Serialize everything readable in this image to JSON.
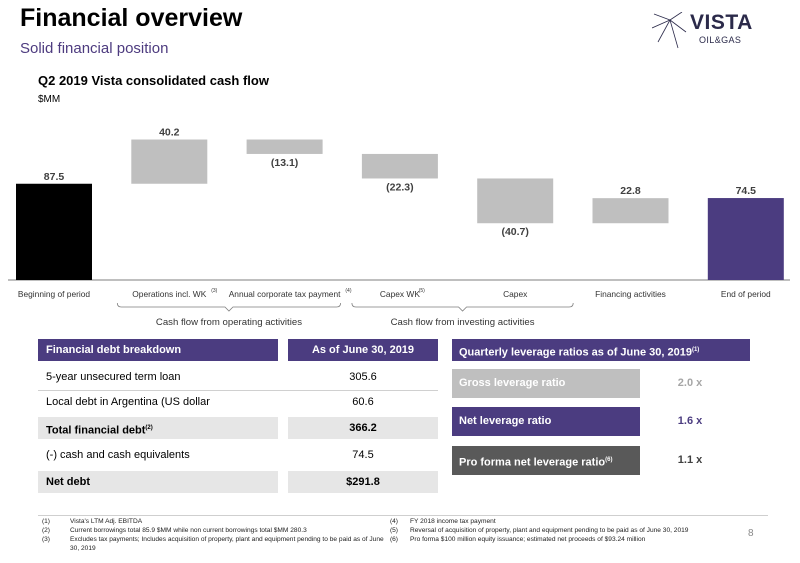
{
  "header": {
    "title": "Financial overview",
    "subtitle": "Solid financial position",
    "logo": {
      "name": "VISTA",
      "sub": "OIL&GAS"
    }
  },
  "chart_data": {
    "type": "bar",
    "title": "Q2 2019 Vista consolidated cash flow",
    "ylabel": "$MM",
    "categories": [
      "Beginning of period",
      "Operations incl. WK",
      "Annual corporate tax payment",
      "Capex WK",
      "Capex",
      "Financing activities",
      "End of period"
    ],
    "footnote_marks": [
      "",
      "(3)",
      "(4)",
      "(5)",
      "",
      "",
      ""
    ],
    "values": [
      87.5,
      40.2,
      -13.1,
      -22.3,
      -40.7,
      22.8,
      74.5
    ],
    "value_labels": [
      "87.5",
      "40.2",
      "(13.1)",
      "(22.3)",
      "(40.7)",
      "22.8",
      "74.5"
    ],
    "bar_colors": [
      "#000000",
      "#bfbfbf",
      "#bfbfbf",
      "#bfbfbf",
      "#bfbfbf",
      "#bfbfbf",
      "#4b3c80"
    ],
    "groups": [
      {
        "label": "Cash flow from operating activities"
      },
      {
        "label": "Cash flow from investing activities"
      }
    ],
    "ylim": [
      0,
      130
    ]
  },
  "debt_table": {
    "headers": [
      "Financial debt breakdown",
      "As of June 30, 2019"
    ],
    "rows": [
      {
        "label": "5-year unsecured term loan",
        "sup": "",
        "value": "305.6"
      },
      {
        "label": "Local debt in Argentina (US dollar denominated)",
        "sup": "",
        "value": "60.6"
      },
      {
        "label": "Total financial debt",
        "sup": "(2)",
        "value": "366.2"
      },
      {
        "label": "(-) cash and cash equivalents",
        "sup": "",
        "value": "74.5"
      },
      {
        "label": "Net debt",
        "sup": "",
        "value": "$291.8"
      }
    ]
  },
  "leverage": {
    "title": "Quarterly leverage ratios as of June 30, 2019",
    "title_sup": "(1)",
    "items": [
      {
        "label": "Gross leverage ratio",
        "sup": "",
        "value": "2.0 x",
        "color": "#bfbfbf",
        "value_color": "#a6a6a6"
      },
      {
        "label": "Net leverage ratio",
        "sup": "",
        "value": "1.6 x",
        "color": "#4b3c80",
        "value_color": "#4b3c80"
      },
      {
        "label": "Pro forma net leverage ratio",
        "sup": "(6)",
        "value": "1.1 x",
        "color": "#595959",
        "value_color": "#404040"
      }
    ]
  },
  "footnotes": {
    "left": [
      {
        "num": "(1)",
        "text": "Vista's LTM Adj. EBITDA"
      },
      {
        "num": "(2)",
        "text": "Current borrowings total 85.9 $MM while non current borrowings total $MM 280.3"
      },
      {
        "num": "(3)",
        "text": "Excludes tax payments; Includes acquisition of property, plant and equipment pending to be paid as of June 30, 2019"
      }
    ],
    "right": [
      {
        "num": "(4)",
        "text": "FY 2018 income tax payment"
      },
      {
        "num": "(5)",
        "text": "Reversal of acquisition of property, plant and equipment pending to be paid as of June 30, 2019"
      },
      {
        "num": "(6)",
        "text": "Pro forma $100 million equity issuance; estimated net proceeds of $93.24 million"
      }
    ]
  },
  "page_number": "8"
}
